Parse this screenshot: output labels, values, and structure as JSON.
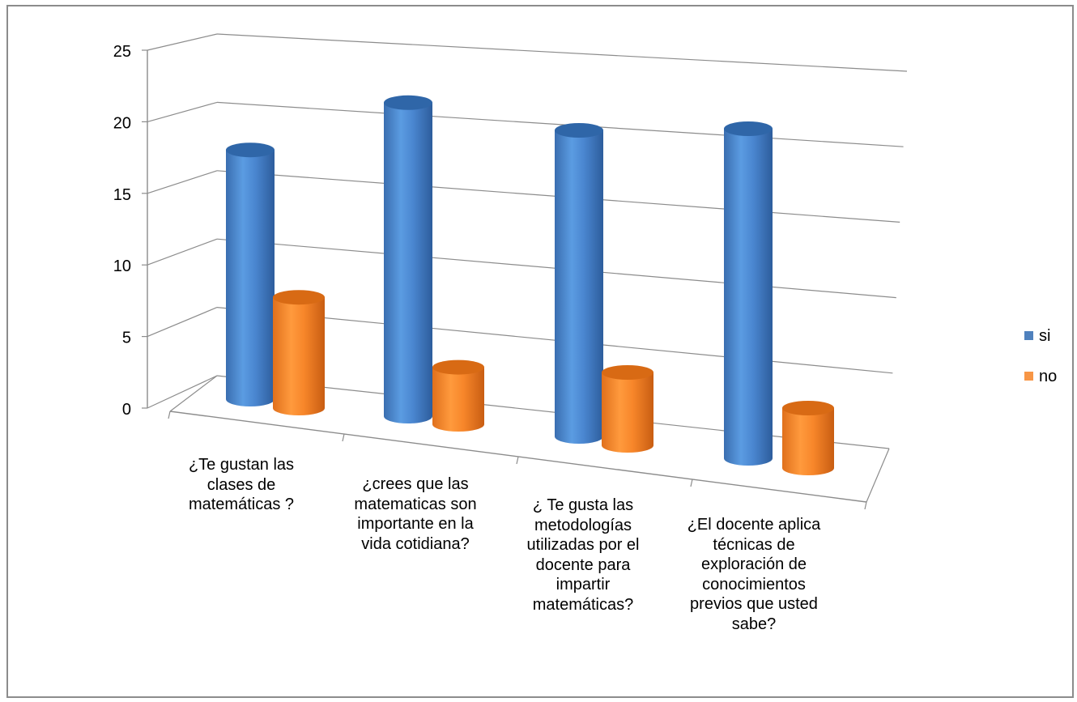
{
  "chart_data": {
    "type": "bar",
    "categories": [
      "¿Te gustan las\nclases de\nmatemáticas ?",
      "¿crees que las\nmatematicas son\nimportante en la\nvida cotidiana?",
      "¿ Te gusta las\nmetodologías\nutilizadas por el\ndocente para\nimpartir\nmatemáticas?",
      "¿El docente aplica\ntécnicas de\nexploración de\nconocimientos\nprevios que usted\nsabe?"
    ],
    "series": [
      {
        "name": "si",
        "values": [
          18,
          22,
          21,
          22
        ],
        "color": "#4f81bd"
      },
      {
        "name": "no",
        "values": [
          8,
          4,
          5,
          4
        ],
        "color": "#f79646"
      }
    ],
    "yticks": [
      "0",
      "5",
      "10",
      "15",
      "20",
      "25"
    ],
    "ylim": [
      0,
      25
    ],
    "title": "",
    "xlabel": "",
    "ylabel": "",
    "grid": true,
    "legend_position": "right",
    "style": "3d-cylinder"
  }
}
